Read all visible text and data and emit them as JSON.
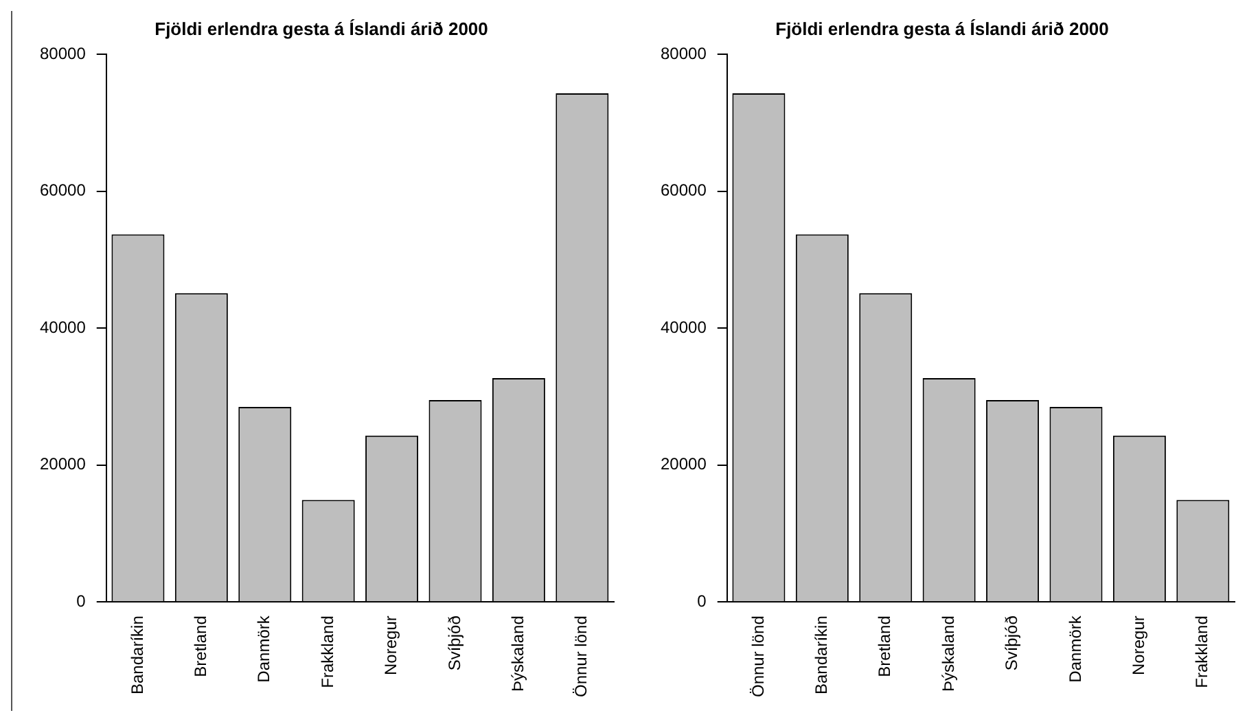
{
  "chart_data": [
    {
      "type": "bar",
      "title": "Fjöldi erlendra gesta á Íslandi árið 2000",
      "categories": [
        "Bandaríkin",
        "Bretland",
        "Danmörk",
        "Frakkland",
        "Noregur",
        "Svíþjóð",
        "Þýskaland",
        "Önnur lönd"
      ],
      "values": [
        53700,
        45100,
        28500,
        14900,
        24300,
        29500,
        32700,
        74300
      ],
      "color": "#bebebe",
      "ylim": [
        0,
        80000
      ],
      "yticks": [
        0,
        20000,
        40000,
        60000,
        80000
      ],
      "grid": false,
      "legend": false
    },
    {
      "type": "bar",
      "title": "Fjöldi erlendra gesta á Íslandi árið 2000",
      "categories": [
        "Önnur lönd",
        "Bandaríkin",
        "Bretland",
        "Þýskaland",
        "Svíþjóð",
        "Danmörk",
        "Noregur",
        "Frakkland"
      ],
      "values": [
        74300,
        53700,
        45100,
        32700,
        29500,
        28500,
        24300,
        14900
      ],
      "color": "#bebebe",
      "ylim": [
        0,
        80000
      ],
      "yticks": [
        0,
        20000,
        40000,
        60000,
        80000
      ],
      "grid": false,
      "legend": false
    }
  ]
}
